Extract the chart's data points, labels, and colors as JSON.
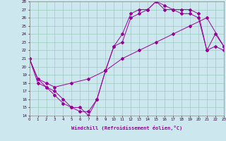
{
  "xlabel": "Windchill (Refroidissement éolien,°C)",
  "bg_color": "#cce8ee",
  "line_color": "#990099",
  "grid_color": "#99ccbb",
  "x_min": 0,
  "x_max": 23,
  "y_min": 14,
  "y_max": 28,
  "line1_x": [
    0,
    1,
    2,
    3,
    4,
    5,
    6,
    7,
    8,
    9,
    10,
    11,
    12,
    13,
    14,
    15,
    16,
    17,
    18,
    19,
    20,
    21,
    22,
    23
  ],
  "line1_y": [
    21,
    18.5,
    17.5,
    17,
    16,
    15,
    15,
    14,
    16,
    19.5,
    22.5,
    24,
    26.5,
    27,
    27,
    28,
    27,
    27,
    26.5,
    26.5,
    26,
    22,
    24,
    22.5
  ],
  "line2_x": [
    0,
    1,
    2,
    3,
    4,
    5,
    6,
    7,
    8,
    9,
    10,
    11,
    12,
    13,
    14,
    15,
    16,
    17,
    18,
    19,
    20,
    21,
    22,
    23
  ],
  "line2_y": [
    21,
    18,
    17.5,
    16.5,
    15.5,
    15,
    14.5,
    14.5,
    16,
    19.5,
    22.5,
    23,
    26,
    26.5,
    27,
    28,
    27.5,
    27,
    27,
    27,
    26.5,
    22,
    22.5,
    22
  ],
  "line3_x": [
    0,
    1,
    2,
    3,
    5,
    7,
    9,
    11,
    13,
    15,
    17,
    19,
    21,
    23
  ],
  "line3_y": [
    21,
    18.5,
    18,
    17.5,
    18,
    18.5,
    19.5,
    21,
    22,
    23,
    24,
    25,
    26,
    22.5
  ]
}
